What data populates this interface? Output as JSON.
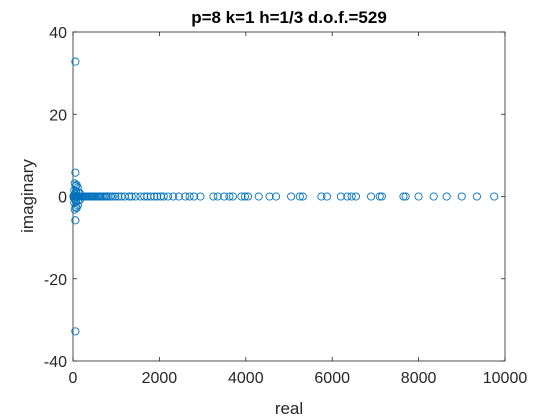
{
  "chart_data": {
    "type": "scatter",
    "title": "p=8 k=1 h=1/3 d.o.f.=529",
    "xlabel": "real",
    "ylabel": "imaginary",
    "xlim": [
      0,
      10000
    ],
    "ylim": [
      -40,
      40
    ],
    "xticks": [
      0,
      2000,
      4000,
      6000,
      8000,
      10000
    ],
    "yticks": [
      -40,
      -20,
      0,
      20,
      40
    ],
    "xtick_labels": [
      "0",
      "2000",
      "4000",
      "6000",
      "8000",
      "10000"
    ],
    "ytick_labels": [
      "-40",
      "-20",
      "0",
      "20",
      "40"
    ],
    "grid": false,
    "legend": false,
    "marker": "open-circle",
    "marker_color": "#0072BD",
    "series": [
      {
        "points": [
          [
            55,
            32.8
          ],
          [
            55,
            -32.8
          ],
          [
            55,
            5.8
          ],
          [
            55,
            -5.8
          ],
          [
            40,
            3.2
          ],
          [
            85,
            2.8
          ],
          [
            60,
            2.5
          ],
          [
            110,
            2.2
          ],
          [
            40,
            -3.2
          ],
          [
            85,
            -2.8
          ],
          [
            60,
            -2.5
          ],
          [
            110,
            -2.2
          ],
          [
            30,
            1.5
          ],
          [
            70,
            1.3
          ],
          [
            120,
            1.0
          ],
          [
            160,
            0.8
          ],
          [
            30,
            -1.5
          ],
          [
            70,
            -1.3
          ],
          [
            120,
            -1.0
          ],
          [
            160,
            -0.8
          ],
          [
            20,
            0.3
          ],
          [
            20,
            -0.3
          ],
          [
            45,
            0.6
          ],
          [
            45,
            -0.6
          ],
          [
            10,
            0
          ],
          [
            35,
            0
          ],
          [
            60,
            0
          ],
          [
            90,
            0
          ],
          [
            120,
            0
          ],
          [
            150,
            0
          ],
          [
            180,
            0
          ],
          [
            210,
            0
          ],
          [
            240,
            0
          ],
          [
            270,
            0
          ],
          [
            300,
            0
          ],
          [
            330,
            0
          ],
          [
            360,
            0
          ],
          [
            390,
            0
          ],
          [
            420,
            0
          ],
          [
            450,
            0
          ],
          [
            480,
            0
          ],
          [
            510,
            0
          ],
          [
            540,
            0
          ],
          [
            570,
            0
          ],
          [
            600,
            0
          ],
          [
            630,
            0
          ],
          [
            660,
            0
          ],
          [
            700,
            0
          ],
          [
            740,
            0
          ],
          [
            780,
            0
          ],
          [
            820,
            0
          ],
          [
            870,
            0
          ],
          [
            920,
            0
          ],
          [
            980,
            0
          ],
          [
            1050,
            0
          ],
          [
            1120,
            0
          ],
          [
            1200,
            0
          ],
          [
            1300,
            0
          ],
          [
            1360,
            0
          ],
          [
            1450,
            0
          ],
          [
            1560,
            0
          ],
          [
            1650,
            0
          ],
          [
            1720,
            0
          ],
          [
            1800,
            0
          ],
          [
            1880,
            0
          ],
          [
            1950,
            0
          ],
          [
            2030,
            0
          ],
          [
            2100,
            0
          ],
          [
            2200,
            0
          ],
          [
            2320,
            0
          ],
          [
            2450,
            0
          ],
          [
            2600,
            0
          ],
          [
            2700,
            0
          ],
          [
            2800,
            0
          ],
          [
            2950,
            0
          ],
          [
            3250,
            0
          ],
          [
            3350,
            0
          ],
          [
            3500,
            0
          ],
          [
            3620,
            0
          ],
          [
            3700,
            0
          ],
          [
            3900,
            0
          ],
          [
            3980,
            0
          ],
          [
            4050,
            0
          ],
          [
            4300,
            0
          ],
          [
            4550,
            0
          ],
          [
            4700,
            0
          ],
          [
            5050,
            0
          ],
          [
            5250,
            0
          ],
          [
            5320,
            0
          ],
          [
            5750,
            0
          ],
          [
            5880,
            0
          ],
          [
            6200,
            0
          ],
          [
            6350,
            0
          ],
          [
            6450,
            0
          ],
          [
            6550,
            0
          ],
          [
            6900,
            0
          ],
          [
            7100,
            0
          ],
          [
            7150,
            0
          ],
          [
            7650,
            0
          ],
          [
            7700,
            0
          ],
          [
            8000,
            0
          ],
          [
            8350,
            0
          ],
          [
            8650,
            0
          ],
          [
            9000,
            0
          ],
          [
            9350,
            0
          ],
          [
            9750,
            0
          ]
        ]
      }
    ]
  }
}
